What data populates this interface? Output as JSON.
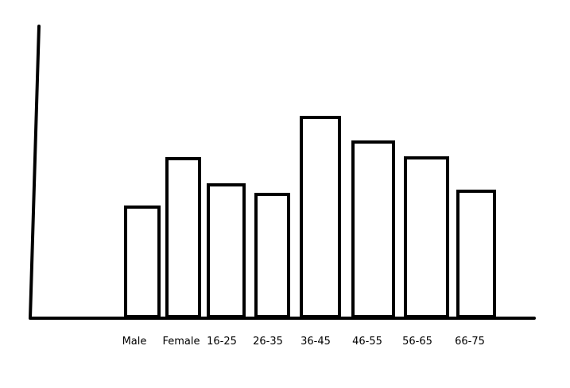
{
  "chart_data": {
    "type": "bar",
    "categories": [
      "Male",
      "Female",
      "16-25",
      "26-35",
      "36-45",
      "46-55",
      "56-65",
      "66-75"
    ],
    "values": [
      138,
      199,
      166,
      154,
      251,
      220,
      200,
      158
    ],
    "title": "",
    "xlabel": "",
    "ylabel": "",
    "ylim": [
      0,
      370
    ],
    "grid": false,
    "legend": "none",
    "colors": {
      "bar_fill": "#ffffff",
      "bar_stroke": "#000000",
      "axis": "#000000"
    }
  }
}
